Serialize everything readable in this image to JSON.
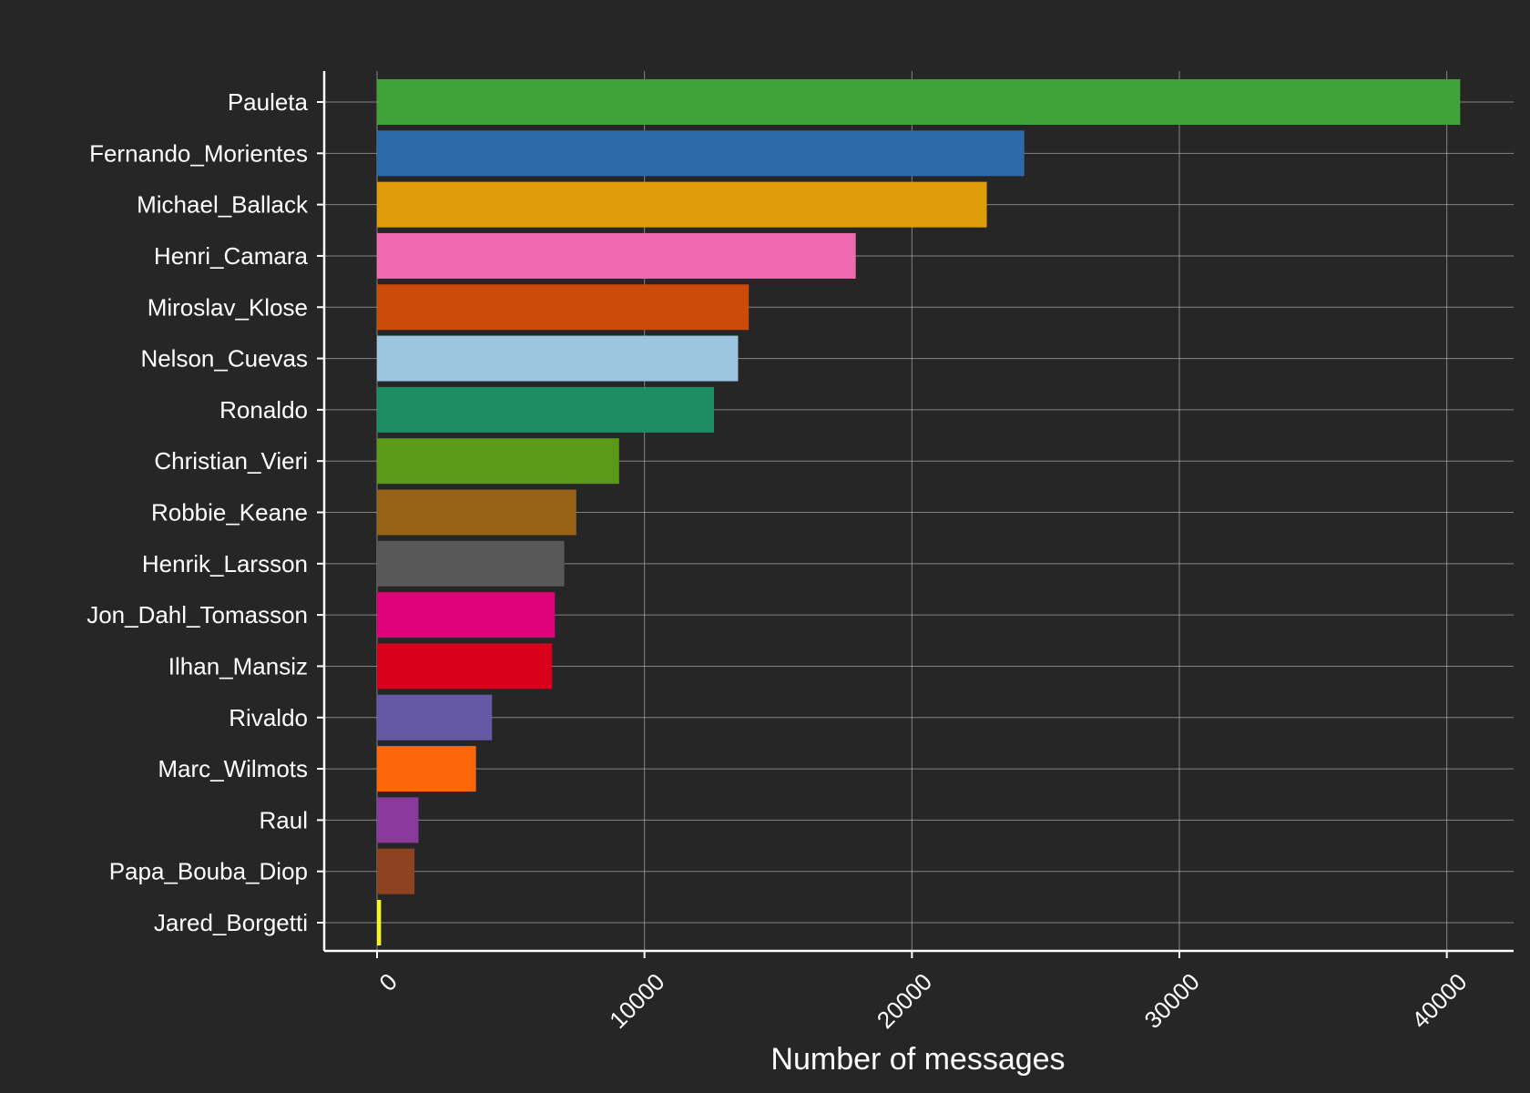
{
  "chart_data": {
    "type": "bar",
    "orientation": "horizontal",
    "title": "",
    "xlabel": "Number of messages",
    "ylabel": "",
    "xlim": [
      0,
      42000
    ],
    "x_ticks": [
      0,
      10000,
      20000,
      30000,
      40000
    ],
    "x_tick_labels": [
      "0",
      "10000",
      "20000",
      "30000",
      "40000"
    ],
    "grid": true,
    "legend": "none",
    "background_color": "#262626",
    "categories": [
      "Pauleta",
      "Fernando_Morientes",
      "Michael_Ballack",
      "Henri_Camara",
      "Miroslav_Klose",
      "Nelson_Cuevas",
      "Ronaldo",
      "Christian_Vieri",
      "Robbie_Keane",
      "Henrik_Larsson",
      "Jon_Dahl_Tomasson",
      "Ilhan_Mansiz",
      "Rivaldo",
      "Marc_Wilmots",
      "Raul",
      "Papa_Bouba_Diop",
      "Jared_Borgetti"
    ],
    "values": [
      40500,
      24200,
      22800,
      17900,
      13900,
      13500,
      12600,
      9050,
      7450,
      7000,
      6650,
      6550,
      4300,
      3700,
      1550,
      1400,
      150
    ],
    "colors": [
      "#3fa23a",
      "#2e6aab",
      "#de9c08",
      "#f06ab1",
      "#cc4a0a",
      "#9cc6e0",
      "#1e8d66",
      "#5a9a18",
      "#966316",
      "#585858",
      "#de0178",
      "#d9001b",
      "#6559a6",
      "#fd6709",
      "#8a3a9a",
      "#8e4320",
      "#f6f51f"
    ]
  }
}
